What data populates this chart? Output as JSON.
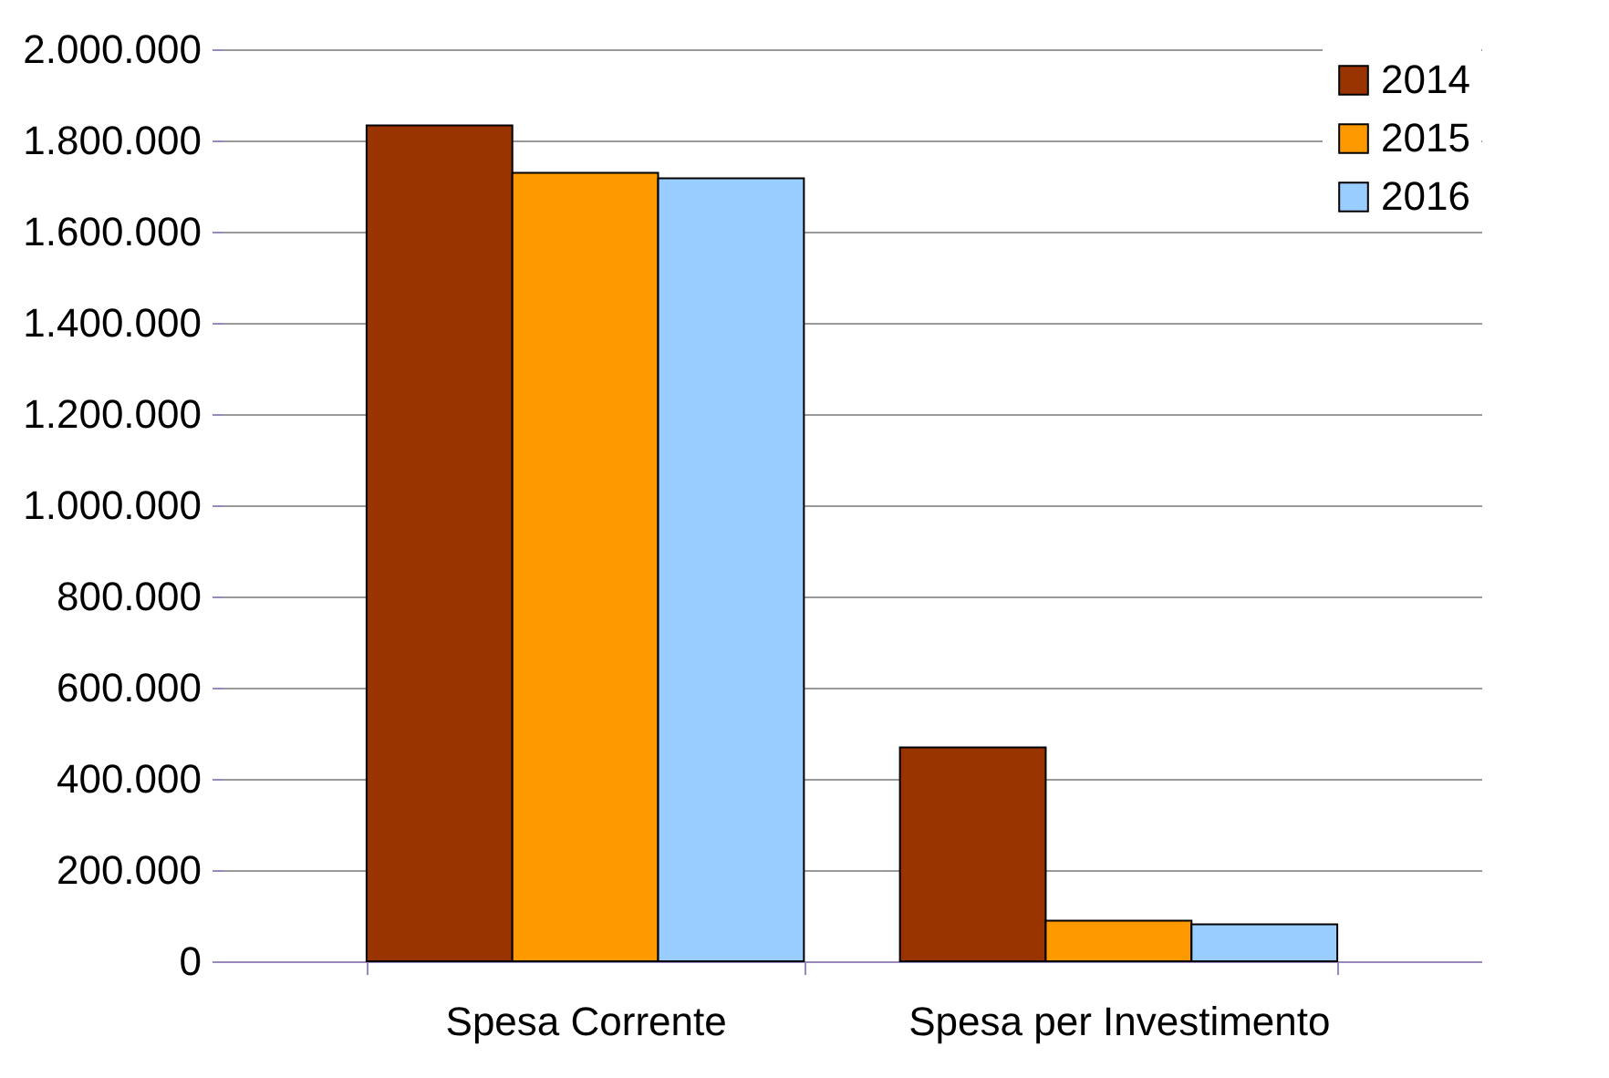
{
  "chart_data": {
    "type": "bar",
    "categories": [
      "Spesa Corrente",
      "Spesa per Investimento"
    ],
    "series": [
      {
        "name": "2014",
        "color": "#993300",
        "values": [
          1833000,
          469000
        ]
      },
      {
        "name": "2015",
        "color": "#ff9900",
        "values": [
          1729000,
          89000
        ]
      },
      {
        "name": "2016",
        "color": "#99ccff",
        "values": [
          1717000,
          81000
        ]
      }
    ],
    "ylim": [
      0,
      2000000
    ],
    "yticks": [
      {
        "value": 0,
        "label": "0"
      },
      {
        "value": 200000,
        "label": "200.000"
      },
      {
        "value": 400000,
        "label": "400.000"
      },
      {
        "value": 600000,
        "label": "600.000"
      },
      {
        "value": 800000,
        "label": "800.000"
      },
      {
        "value": 1000000,
        "label": "1.000.000"
      },
      {
        "value": 1200000,
        "label": "1.200.000"
      },
      {
        "value": 1400000,
        "label": "1.400.000"
      },
      {
        "value": 1600000,
        "label": "1.600.000"
      },
      {
        "value": 1800000,
        "label": "1.800.000"
      },
      {
        "value": 2000000,
        "label": "2.000.000"
      }
    ],
    "grid": "y",
    "legend": "top right"
  }
}
